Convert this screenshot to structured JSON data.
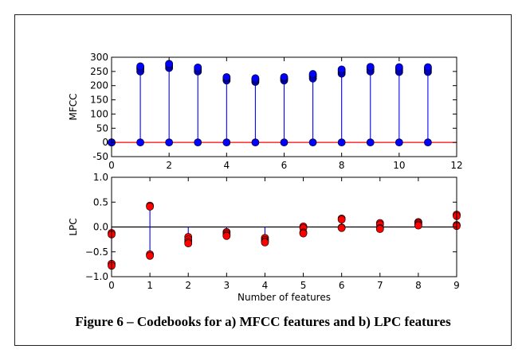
{
  "caption": "Figure 6 – Codebooks for a) MFCC features and b) LPC features",
  "colors": {
    "stem": "#0000ff",
    "baseline_mfcc": "#ff0000",
    "baseline_lpc": "#000000",
    "marker_mfcc": "#0000ff",
    "marker_lpc": "#ff0000",
    "marker_edge": "#000000"
  },
  "chart_data": [
    {
      "type": "scatter",
      "subtype": "stem",
      "title": "",
      "xlabel": "",
      "ylabel": "MFCC",
      "xlim": [
        0,
        12
      ],
      "ylim": [
        -50,
        300
      ],
      "xticks": [
        0,
        2,
        4,
        6,
        8,
        10,
        12
      ],
      "yticks": [
        -50,
        0,
        50,
        100,
        150,
        200,
        250,
        300
      ],
      "grid": false,
      "baseline": 0,
      "points": [
        {
          "x": 0,
          "values": [
            0,
            0,
            0,
            0
          ]
        },
        {
          "x": 1,
          "values": [
            250,
            258,
            263,
            268,
            0
          ]
        },
        {
          "x": 2,
          "values": [
            262,
            268,
            273,
            277,
            0
          ]
        },
        {
          "x": 3,
          "values": [
            250,
            255,
            260,
            264,
            0
          ]
        },
        {
          "x": 4,
          "values": [
            218,
            223,
            227,
            230,
            0
          ]
        },
        {
          "x": 5,
          "values": [
            213,
            218,
            222,
            226,
            0
          ]
        },
        {
          "x": 6,
          "values": [
            218,
            223,
            227,
            230,
            0
          ]
        },
        {
          "x": 7,
          "values": [
            225,
            232,
            237,
            241,
            0
          ]
        },
        {
          "x": 8,
          "values": [
            242,
            248,
            253,
            257,
            0
          ]
        },
        {
          "x": 9,
          "values": [
            250,
            256,
            262,
            266,
            0
          ]
        },
        {
          "x": 10,
          "values": [
            248,
            254,
            260,
            265,
            0
          ]
        },
        {
          "x": 11,
          "values": [
            248,
            254,
            260,
            265,
            0
          ]
        }
      ]
    },
    {
      "type": "scatter",
      "subtype": "stem",
      "title": "",
      "xlabel": "Number of features",
      "ylabel": "LPC",
      "xlim": [
        0,
        9
      ],
      "ylim": [
        -1.0,
        1.0
      ],
      "xticks": [
        0,
        1,
        2,
        3,
        4,
        5,
        6,
        7,
        8,
        9
      ],
      "yticks": [
        -1.0,
        -0.5,
        0.0,
        0.5,
        1.0
      ],
      "ytick_labels": [
        "−1.0",
        "−0.5",
        "0.0",
        "0.5",
        "1.0"
      ],
      "grid": false,
      "baseline": 0,
      "points": [
        {
          "x": 0,
          "values": [
            -0.12,
            -0.15,
            -0.74,
            -0.78
          ]
        },
        {
          "x": 1,
          "values": [
            0.43,
            0.41,
            -0.55,
            -0.58
          ]
        },
        {
          "x": 2,
          "values": [
            -0.2,
            -0.25,
            -0.3,
            -0.33
          ]
        },
        {
          "x": 3,
          "values": [
            -0.1,
            -0.13,
            -0.16,
            -0.18
          ]
        },
        {
          "x": 4,
          "values": [
            -0.22,
            -0.26,
            -0.29,
            -0.31
          ]
        },
        {
          "x": 5,
          "values": [
            0.01,
            -0.02,
            -0.11,
            -0.13
          ]
        },
        {
          "x": 6,
          "values": [
            0.17,
            0.15,
            -0.01,
            -0.02
          ]
        },
        {
          "x": 7,
          "values": [
            0.08,
            0.05,
            -0.02,
            -0.04
          ]
        },
        {
          "x": 8,
          "values": [
            0.1,
            0.08,
            0.05,
            0.03
          ]
        },
        {
          "x": 9,
          "values": [
            0.25,
            0.22,
            0.04,
            0.02
          ]
        }
      ]
    }
  ]
}
